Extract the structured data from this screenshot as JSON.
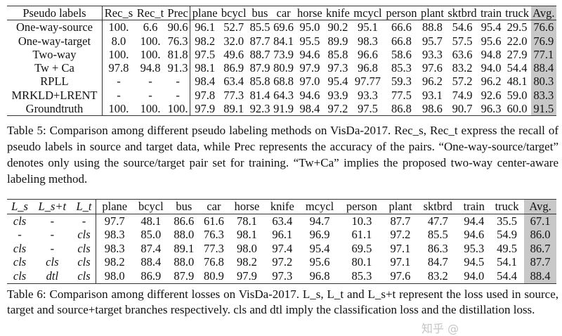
{
  "table5": {
    "headers": [
      "Pseudo labels",
      "Rec_s",
      "Rec_t",
      "Prec",
      "plane",
      "bcycl",
      "bus",
      "car",
      "horse",
      "knife",
      "mcycl",
      "person",
      "plant",
      "sktbrd",
      "train",
      "truck",
      "Avg."
    ],
    "rows": [
      [
        "One-way-source",
        "100.",
        "6.6",
        "90.6",
        "96.1",
        "52.7",
        "85.5",
        "69.6",
        "95.0",
        "90.2",
        "95.1",
        "66.6",
        "88.8",
        "54.6",
        "95.4",
        "29.5",
        "76.6"
      ],
      [
        "One-way-target",
        "8.0",
        "100.",
        "76.3",
        "98.2",
        "32.0",
        "87.7",
        "84.1",
        "95.5",
        "89.9",
        "98.3",
        "66.8",
        "95.7",
        "57.5",
        "95.6",
        "22.0",
        "76.9"
      ],
      [
        "Two-way",
        "100.",
        "100.",
        "81.8",
        "97.5",
        "49.6",
        "88.7",
        "73.9",
        "94.6",
        "85.8",
        "96.6",
        "58.6",
        "93.3",
        "63.6",
        "94.8",
        "27.9",
        "77.1"
      ],
      [
        "Tw + Ca",
        "97.8",
        "94.8",
        "91.3",
        "98.1",
        "86.9",
        "87.9",
        "80.9",
        "97.9",
        "97.3",
        "96.8",
        "85.3",
        "97.6",
        "83.2",
        "94.0",
        "54.4",
        "88.4"
      ],
      [
        "RPLL",
        "-",
        "-",
        "-",
        "98.4",
        "63.4",
        "85.8",
        "68.8",
        "97.0",
        "95.4",
        "97.77",
        "59.3",
        "96.2",
        "57.2",
        "96.2",
        "48.1",
        "80.3"
      ],
      [
        "MRKLD+LRENT",
        "-",
        "-",
        "-",
        "97.8",
        "77.3",
        "81.4",
        "64.3",
        "94.6",
        "93.9",
        "93.3",
        "77.5",
        "93.1",
        "74.9",
        "92.6",
        "59.0",
        "83.3"
      ],
      [
        "Groundtruth",
        "100.",
        "100.",
        "100.",
        "97.9",
        "89.1",
        "92.3",
        "91.9",
        "98.4",
        "97.2",
        "97.5",
        "86.8",
        "98.6",
        "90.7",
        "96.3",
        "60.0",
        "91.5"
      ]
    ],
    "caption": "Table 5: Comparison among different pseudo labeling methods on VisDa-2017. Rec_s, Rec_t express the recall of pseudo labels in source and target data, while Prec represents the accuracy of the pairs. “One-way-source/target” denotes only using the source/target pair set for training. “Tw+Ca” implies the proposed two-way center-aware labeling method."
  },
  "table6": {
    "headers": [
      "L_s",
      "L_s+t",
      "L_t",
      "plane",
      "bcycl",
      "bus",
      "car",
      "horse",
      "knife",
      "mcycl",
      "person",
      "plant",
      "sktbrd",
      "train",
      "truck",
      "Avg."
    ],
    "rows": [
      [
        "cls",
        "-",
        "-",
        "97.7",
        "48.1",
        "86.6",
        "61.6",
        "78.1",
        "63.4",
        "94.7",
        "10.3",
        "87.7",
        "47.7",
        "94.4",
        "35.5",
        "67.1"
      ],
      [
        "-",
        "-",
        "cls",
        "98.3",
        "85.0",
        "88.0",
        "76.3",
        "98.1",
        "96.1",
        "96.9",
        "61.1",
        "97.2",
        "85.5",
        "94.6",
        "54.9",
        "86.0"
      ],
      [
        "cls",
        "-",
        "cls",
        "98.3",
        "87.4",
        "89.1",
        "77.3",
        "98.0",
        "97.4",
        "95.4",
        "69.5",
        "97.1",
        "86.3",
        "95.3",
        "49.5",
        "86.7"
      ],
      [
        "cls",
        "cls",
        "cls",
        "98.2",
        "88.4",
        "88.0",
        "76.8",
        "98.2",
        "97.2",
        "95.6",
        "80.1",
        "97.1",
        "84.7",
        "94.5",
        "54.1",
        "87.7"
      ],
      [
        "cls",
        "dtl",
        "cls",
        "98.0",
        "86.9",
        "87.9",
        "80.9",
        "97.9",
        "97.3",
        "96.8",
        "85.3",
        "97.6",
        "83.2",
        "94.0",
        "54.4",
        "88.4"
      ]
    ],
    "caption": "Table 6: Comparison among different losses on VisDa-2017. L_s, L_t and L_s+t represent the loss used in source, target and source+target branches respectively. cls and dtl imply the classification loss and the distillation loss."
  },
  "watermark": "知乎 @",
  "colors": {
    "avg_highlight": "#c8c8c8"
  }
}
